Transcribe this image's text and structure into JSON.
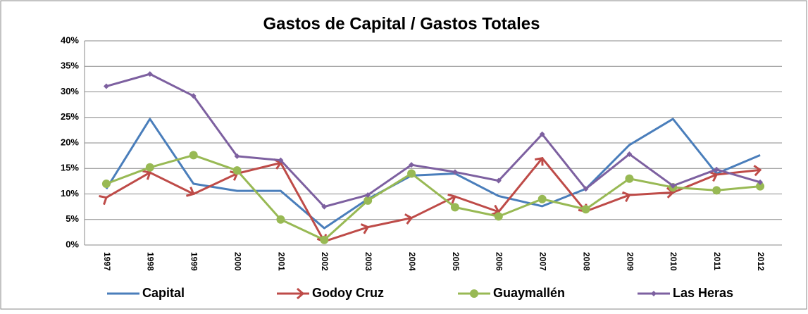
{
  "chart_data": {
    "type": "line",
    "title": "Gastos de Capital / Gastos Totales",
    "categories": [
      "1997",
      "1998",
      "1999",
      "2000",
      "2001",
      "2002",
      "2003",
      "2004",
      "2005",
      "2006",
      "2007",
      "2008",
      "2009",
      "2010",
      "2011",
      "2012"
    ],
    "series": [
      {
        "name": "Capital",
        "color": "#4a7ebb",
        "marker": "none",
        "values": [
          11,
          24.7,
          12,
          10.6,
          10.6,
          3.3,
          9,
          13.6,
          14,
          9.6,
          7.6,
          11,
          19.6,
          24.7,
          14,
          17.6
        ]
      },
      {
        "name": "Godoy Cruz",
        "color": "#be4b48",
        "marker": "arrow",
        "values": [
          9.3,
          14.2,
          10,
          14,
          16.1,
          0.7,
          3.5,
          5.3,
          9.5,
          6.5,
          17,
          6.6,
          9.8,
          10.3,
          13.8,
          14.7
        ]
      },
      {
        "name": "Guaymallén",
        "color": "#98b954",
        "marker": "circle",
        "values": [
          12,
          15.2,
          17.6,
          14.6,
          5,
          1,
          8.7,
          14,
          7.4,
          5.6,
          9,
          7,
          13,
          11.3,
          10.7,
          11.5
        ]
      },
      {
        "name": "Las Heras",
        "color": "#7d60a0",
        "marker": "diamond",
        "values": [
          31.1,
          33.5,
          29.2,
          17.4,
          16.6,
          7.5,
          9.8,
          15.7,
          14.3,
          12.6,
          21.7,
          11,
          17.8,
          11.6,
          14.8,
          12.3
        ]
      }
    ],
    "ylim": [
      0,
      40
    ],
    "yticks": [
      {
        "value": 0,
        "label": "0%"
      },
      {
        "value": 5,
        "label": "5%"
      },
      {
        "value": 10,
        "label": "10%"
      },
      {
        "value": 15,
        "label": "15%"
      },
      {
        "value": 20,
        "label": "20%"
      },
      {
        "value": 25,
        "label": "25%"
      },
      {
        "value": 30,
        "label": "30%"
      },
      {
        "value": 35,
        "label": "35%"
      },
      {
        "value": 40,
        "label": "40%"
      }
    ],
    "grid": true,
    "legend": "bottom"
  }
}
